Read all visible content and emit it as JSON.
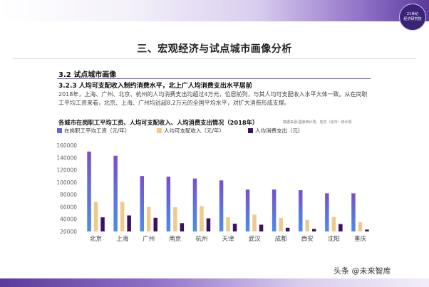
{
  "header": {
    "logo_line1": "21世纪",
    "logo_line2": "经济研究院",
    "section_title": "三、宏观经济与试点城市画像分析"
  },
  "body": {
    "h2": "3.2 试点城市画像",
    "h3": "3.2.3 人均可支配收入制约消费水平，北上广人均消费支出水平居前",
    "paragraph": "2018年，上海、广州、北京、杭州的人均消费支出均超过4万元，位居前列，与其人均可支配收入水平大体一致。从在岗职工平均工资来看，北京、上海、广州均远超8.2万元的全国平均水平，对扩大消费形成支撑。"
  },
  "chart_data": {
    "type": "bar",
    "title": "各城市在岗职工平均工资、人均可支配收入、人均消费支出情况（2018年）",
    "source": "数据来源:国家统计局、地方（省市）统计局",
    "categories": [
      "北京",
      "上海",
      "广州",
      "南京",
      "杭州",
      "天津",
      "武汉",
      "成都",
      "西安",
      "沈阳",
      "重庆"
    ],
    "series": [
      {
        "name": "在岗职工平均工资（元/年）",
        "color": "#5b4fc9",
        "values": [
          149843,
          143000,
          110000,
          109000,
          106000,
          103000,
          88000,
          88000,
          87000,
          82000,
          82000
        ]
      },
      {
        "name": "人均可支配收入（元/年）",
        "color": "#f3c98b",
        "values": [
          67990,
          68034,
          59982,
          59308,
          61172,
          42976,
          47359,
          42128,
          38729,
          43655,
          34889
        ]
      },
      {
        "name": "人均消费支出（元）",
        "color": "#3b1163",
        "values": [
          42926,
          46015,
          42181,
          33532,
          41311,
          32655,
          31000,
          26000,
          24000,
          32000,
          23000
        ]
      }
    ],
    "yticks": [
      "160000",
      "140000",
      "120000",
      "100000",
      "80000",
      "60000",
      "40000",
      "20000"
    ],
    "ylim": [
      20000,
      160000
    ],
    "grid": false,
    "legend_position": "top-left"
  },
  "footer": {
    "watermark": "头条 @未来智库"
  }
}
